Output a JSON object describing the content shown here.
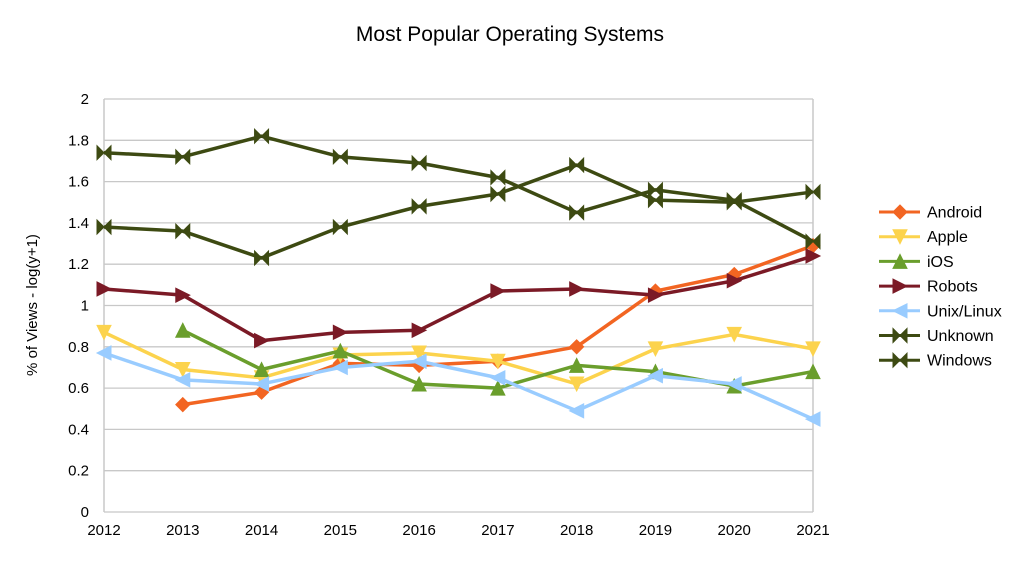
{
  "chart_data": {
    "type": "line",
    "title": "Most Popular Operating Systems",
    "xlabel": "",
    "ylabel": "% of Views - log(y+1)",
    "ylim": [
      0,
      2
    ],
    "yticks": [
      "0",
      "0.2",
      "0.4",
      "0.6",
      "0.8",
      "1",
      "1.2",
      "1.4",
      "1.6",
      "1.8",
      "2"
    ],
    "grid": true,
    "legend_position": "right",
    "categories": [
      "2012",
      "2013",
      "2014",
      "2015",
      "2016",
      "2017",
      "2018",
      "2019",
      "2020",
      "2021"
    ],
    "series": [
      {
        "name": "Android",
        "color": "#f26522",
        "marker": "diamond",
        "values": [
          null,
          0.52,
          0.58,
          0.72,
          0.71,
          0.73,
          0.8,
          1.07,
          1.15,
          1.29
        ]
      },
      {
        "name": "Apple",
        "color": "#fcd34d",
        "marker": "triangle-down",
        "values": [
          0.87,
          0.69,
          0.65,
          0.76,
          0.77,
          0.73,
          0.62,
          0.79,
          0.86,
          0.79
        ]
      },
      {
        "name": "iOS",
        "color": "#6a9e2c",
        "marker": "triangle-up",
        "values": [
          null,
          0.88,
          0.69,
          0.78,
          0.62,
          0.6,
          0.71,
          0.68,
          0.61,
          0.68
        ]
      },
      {
        "name": "Robots",
        "color": "#7b1a26",
        "marker": "triangle-right",
        "values": [
          1.08,
          1.05,
          0.83,
          0.87,
          0.88,
          1.07,
          1.08,
          1.05,
          1.12,
          1.24
        ]
      },
      {
        "name": "Unix/Linux",
        "color": "#99ccff",
        "marker": "triangle-left",
        "values": [
          0.77,
          0.64,
          0.62,
          0.7,
          0.73,
          0.65,
          0.49,
          0.66,
          0.62,
          0.45
        ]
      },
      {
        "name": "Unknown",
        "color": "#3d4a12",
        "marker": "bowtie",
        "values": [
          1.38,
          1.36,
          1.23,
          1.38,
          1.48,
          1.54,
          1.68,
          1.51,
          1.5,
          1.55
        ]
      },
      {
        "name": "Windows",
        "color": "#3d4a12",
        "marker": "bowtie",
        "values": [
          1.74,
          1.72,
          1.82,
          1.72,
          1.69,
          1.62,
          1.45,
          1.56,
          1.51,
          1.31
        ]
      }
    ]
  }
}
